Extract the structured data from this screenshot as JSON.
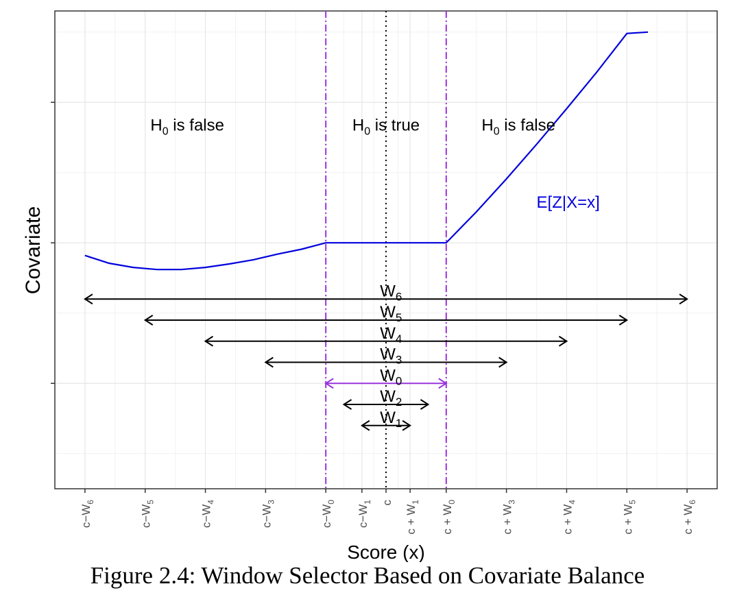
{
  "caption": "Figure 2.4: Window Selector Based on Covariate Balance",
  "chart_data": {
    "type": "line",
    "xlabel": "Score (x)",
    "ylabel": "Covariate",
    "x_ticks": [
      {
        "base": "c−W",
        "sub": "6",
        "pos": -6
      },
      {
        "base": "c−W",
        "sub": "5",
        "pos": -5
      },
      {
        "base": "c−W",
        "sub": "4",
        "pos": -4
      },
      {
        "base": "c−W",
        "sub": "3",
        "pos": -3
      },
      {
        "base": "c−W",
        "sub": "0",
        "pos": -2
      },
      {
        "base": "c−W",
        "sub": "1",
        "pos": -1.4
      },
      {
        "base": "c",
        "sub": "",
        "pos": -1
      },
      {
        "base": "c + W",
        "sub": "1",
        "pos": -0.6
      },
      {
        "base": "c + W",
        "sub": "0",
        "pos": 0
      },
      {
        "base": "c + W",
        "sub": "3",
        "pos": 1
      },
      {
        "base": "c + W",
        "sub": "4",
        "pos": 2
      },
      {
        "base": "c + W",
        "sub": "5",
        "pos": 3
      },
      {
        "base": "c + W",
        "sub": "6",
        "pos": 4
      }
    ],
    "xlim": [
      -6.5,
      4.5
    ],
    "ylim": [
      -3.5,
      3.3
    ],
    "y_ticks": [
      -2,
      0,
      2
    ],
    "grid": true,
    "curve": {
      "name": "E[Z|X=x]",
      "color": "#0000dd",
      "points": [
        [
          -6,
          -0.18
        ],
        [
          -5.6,
          -0.29
        ],
        [
          -5.2,
          -0.35
        ],
        [
          -4.8,
          -0.38
        ],
        [
          -4.4,
          -0.38
        ],
        [
          -4.0,
          -0.35
        ],
        [
          -3.6,
          -0.3
        ],
        [
          -3.2,
          -0.24
        ],
        [
          -2.8,
          -0.16
        ],
        [
          -2.4,
          -0.09
        ],
        [
          -2.0,
          0.0
        ],
        [
          0.0,
          0.0
        ],
        [
          0.5,
          0.44
        ],
        [
          1.0,
          0.91
        ],
        [
          1.5,
          1.4
        ],
        [
          2.0,
          1.91
        ],
        [
          2.5,
          2.43
        ],
        [
          3.0,
          2.98
        ],
        [
          3.35,
          3.0
        ]
      ]
    },
    "regions": [
      {
        "text": "H",
        "sub": "0",
        "rest": " is false",
        "x": -4.3,
        "y": 1.6
      },
      {
        "text": "H",
        "sub": "0",
        "rest": " is true",
        "x": -1.0,
        "y": 1.6
      },
      {
        "text": "H",
        "sub": "0",
        "rest": " is false",
        "x": 1.2,
        "y": 1.6
      }
    ],
    "curve_label_pos": {
      "x": 1.5,
      "y": 0.5
    },
    "vlines": [
      {
        "x": -2,
        "style": "dashdot",
        "color": "#9933dd"
      },
      {
        "x": 0,
        "style": "dashdot",
        "color": "#9933dd"
      },
      {
        "x": -1,
        "style": "dotted",
        "color": "#000000"
      }
    ],
    "windows": [
      {
        "base": "W",
        "sub": "6",
        "x0": -6,
        "x1": 4,
        "y": -0.8,
        "color": "#000000"
      },
      {
        "base": "W",
        "sub": "5",
        "x0": -5,
        "x1": 3,
        "y": -1.1,
        "color": "#000000"
      },
      {
        "base": "W",
        "sub": "4",
        "x0": -4,
        "x1": 2,
        "y": -1.4,
        "color": "#000000"
      },
      {
        "base": "W",
        "sub": "3",
        "x0": -3,
        "x1": 1,
        "y": -1.7,
        "color": "#000000"
      },
      {
        "base": "W",
        "sub": "0",
        "x0": -2,
        "x1": 0,
        "y": -2.0,
        "color": "#9933dd"
      },
      {
        "base": "W",
        "sub": "2",
        "x0": -1.7,
        "x1": -0.3,
        "y": -2.3,
        "color": "#000000"
      },
      {
        "base": "W",
        "sub": "1",
        "x0": -1.4,
        "x1": -0.6,
        "y": -2.6,
        "color": "#000000"
      }
    ]
  }
}
